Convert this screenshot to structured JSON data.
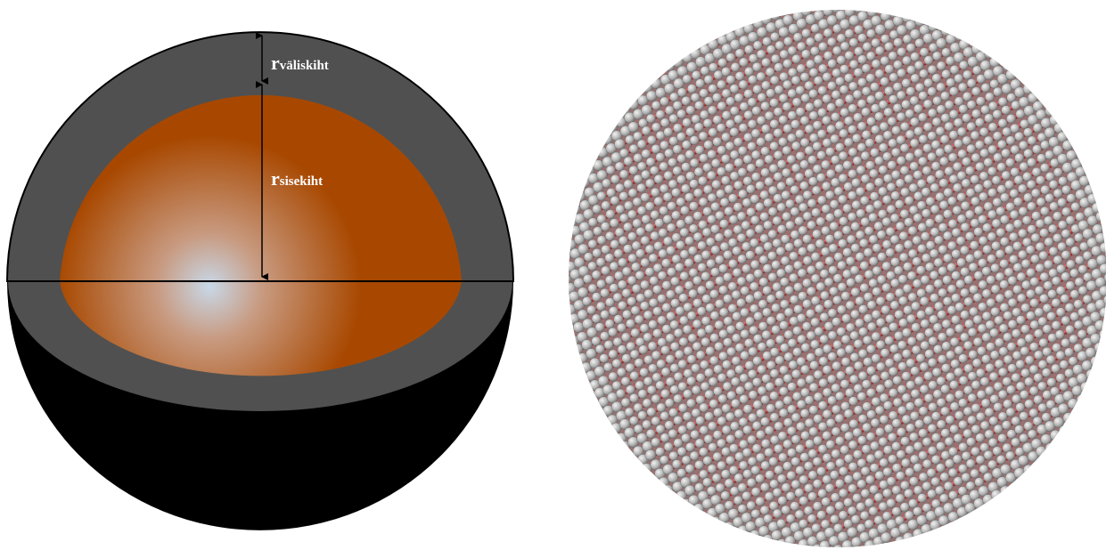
{
  "labels": [
    {
      "symbol": "r",
      "subscript": "väliskiht"
    },
    {
      "symbol": "r",
      "subscript": "sisekiht"
    }
  ]
}
